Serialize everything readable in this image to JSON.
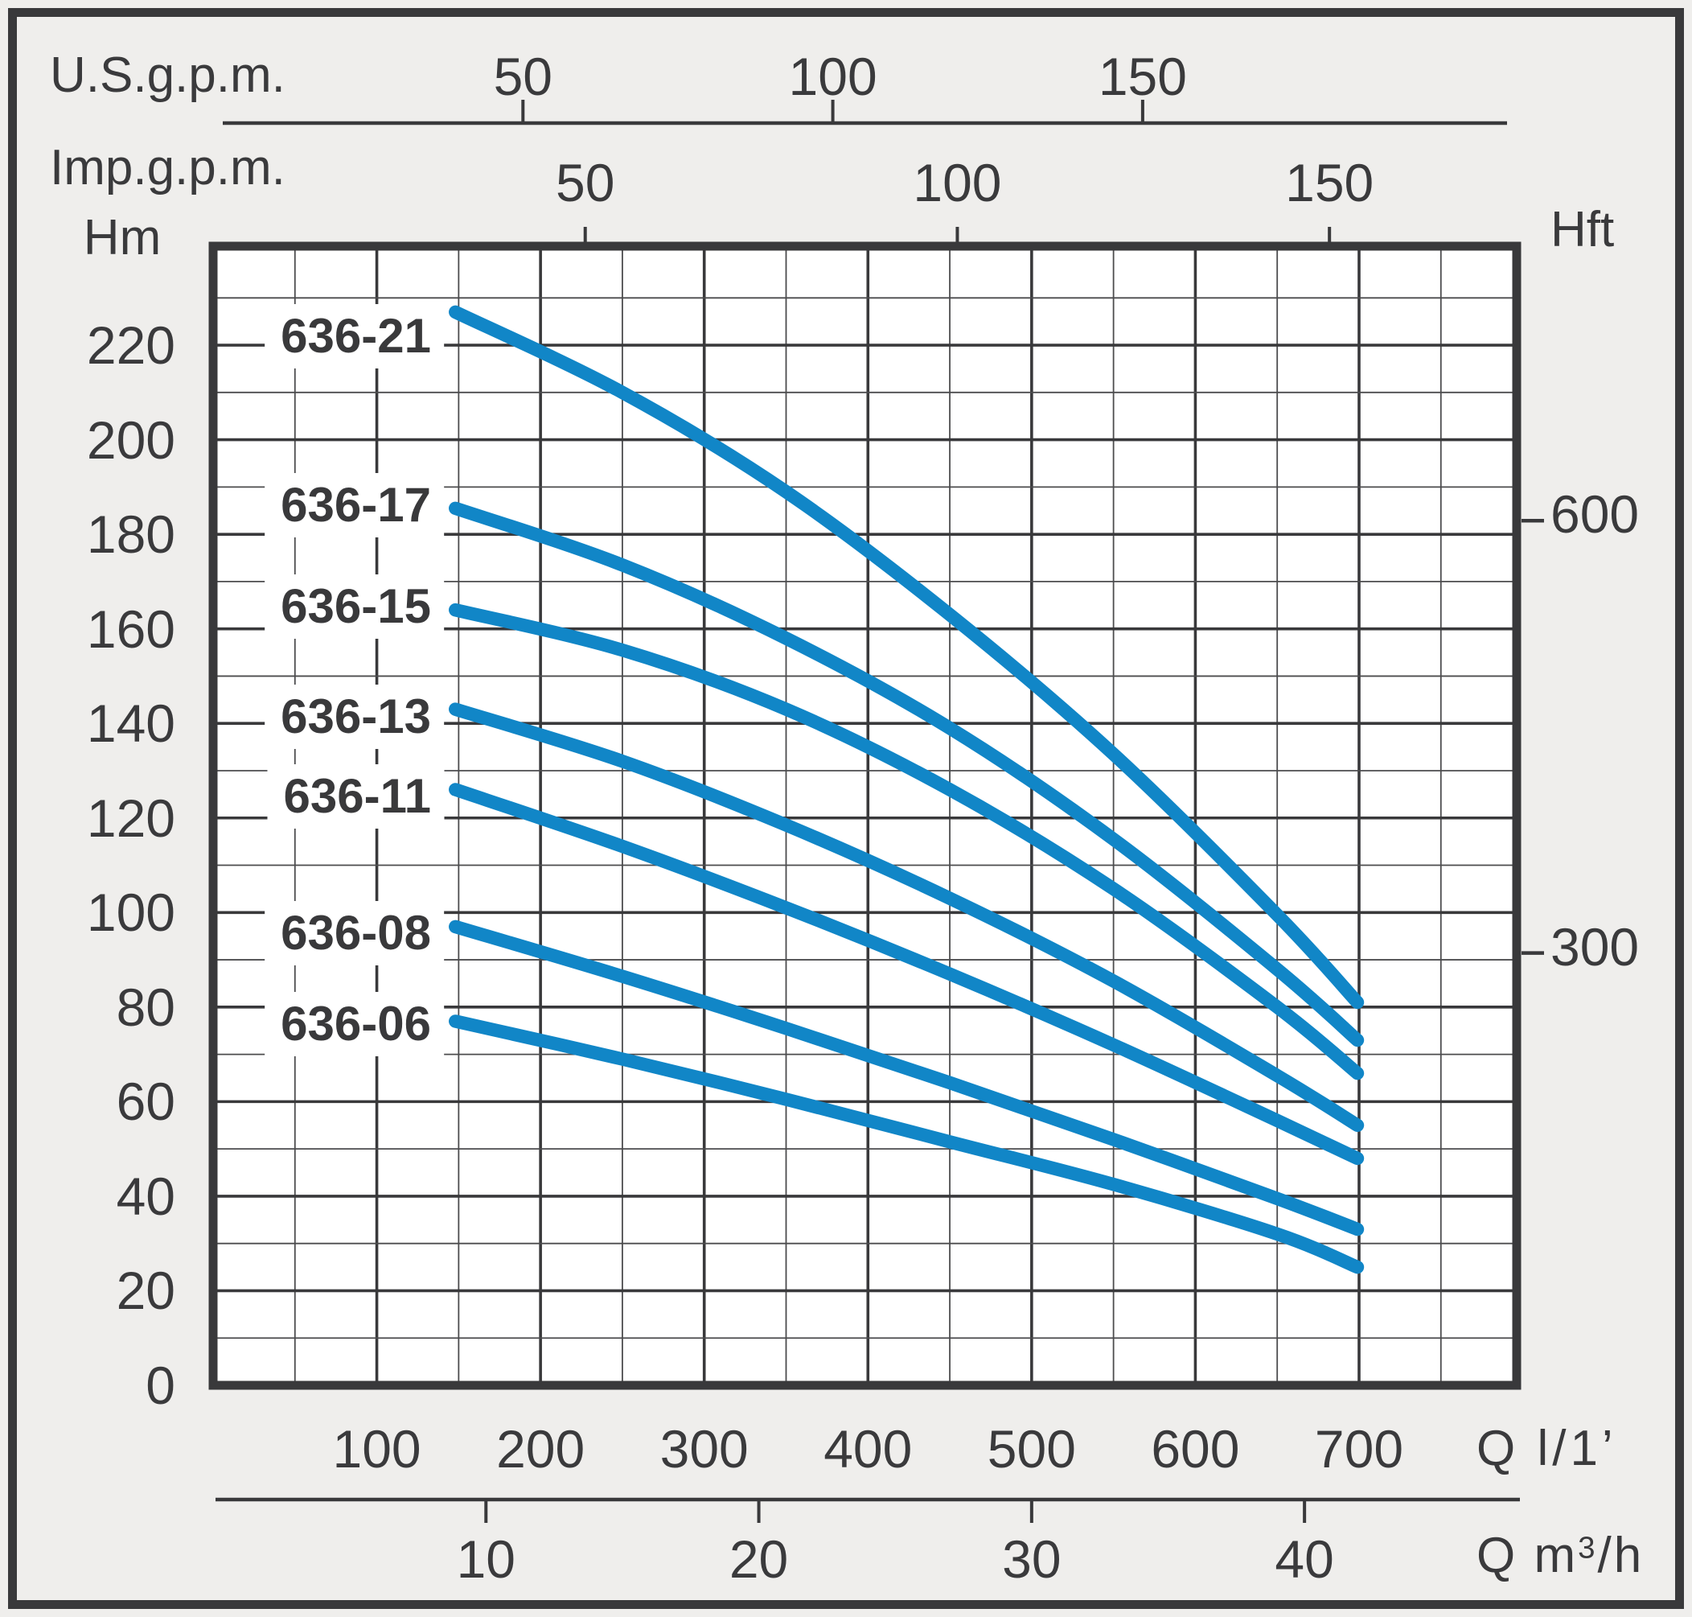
{
  "page": {
    "background": "#efeeec",
    "border_color": "#39393b"
  },
  "chart_data": {
    "type": "line",
    "title": "",
    "legend_position": "inline-left-of-curves",
    "grid": {
      "on": true,
      "x_step_lmin": 50,
      "x_major_every_lmin": 100,
      "y_step_m": 10,
      "y_major_every_m": 20
    },
    "x_range_lmin": [
      0,
      796
    ],
    "y_range_m": [
      0,
      241
    ],
    "axes": {
      "x_top_us": {
        "title": "U.S.g.p.m.",
        "ticks": [
          50,
          100,
          150
        ],
        "lmin_per_unit": 3.7854
      },
      "x_top_imp": {
        "title": "Imp.g.p.m.",
        "ticks": [
          50,
          100,
          150
        ],
        "lmin_per_unit": 4.5461
      },
      "y_left": {
        "title": "Hm",
        "ticks": [
          0,
          20,
          40,
          60,
          80,
          100,
          120,
          140,
          160,
          180,
          200,
          220
        ]
      },
      "y_right": {
        "title": "Hft",
        "ticks": [
          600,
          300
        ],
        "m_per_unit": 0.3048
      },
      "x_bottom": {
        "title": "Q l/1’",
        "ticks": [
          100,
          200,
          300,
          400,
          500,
          600,
          700
        ]
      },
      "x_bottom_m3h": {
        "title_prefix": "Q m",
        "title_sup": "3",
        "title_suffix": "/h",
        "ticks": [
          10,
          20,
          30,
          40
        ],
        "lmin_per_unit": 16.6667
      }
    },
    "series": [
      {
        "name": "636-21",
        "label_dy": 30,
        "points": [
          [
            148,
            227
          ],
          [
            250,
            210
          ],
          [
            350,
            189
          ],
          [
            450,
            163
          ],
          [
            550,
            133.5
          ],
          [
            650,
            99.5
          ],
          [
            699,
            81
          ]
        ]
      },
      {
        "name": "636-17",
        "label_dy": -4,
        "points": [
          [
            148,
            185.5
          ],
          [
            250,
            173.5
          ],
          [
            350,
            158
          ],
          [
            450,
            139
          ],
          [
            550,
            115.5
          ],
          [
            650,
            88
          ],
          [
            699,
            73
          ]
        ]
      },
      {
        "name": "636-15",
        "label_dy": -4,
        "points": [
          [
            148,
            164
          ],
          [
            250,
            155.5
          ],
          [
            350,
            143
          ],
          [
            450,
            126
          ],
          [
            550,
            105
          ],
          [
            650,
            80
          ],
          [
            699,
            66
          ]
        ]
      },
      {
        "name": "636-13",
        "label_dy": 9,
        "points": [
          [
            148,
            143
          ],
          [
            250,
            132
          ],
          [
            350,
            118.5
          ],
          [
            450,
            103
          ],
          [
            550,
            85.5
          ],
          [
            650,
            65.5
          ],
          [
            699,
            55
          ]
        ]
      },
      {
        "name": "636-11",
        "label_dy": 9,
        "points": [
          [
            148,
            126
          ],
          [
            250,
            114
          ],
          [
            350,
            101
          ],
          [
            450,
            87
          ],
          [
            550,
            72
          ],
          [
            650,
            56
          ],
          [
            699,
            48
          ]
        ]
      },
      {
        "name": "636-08",
        "label_dy": 8,
        "points": [
          [
            148,
            97
          ],
          [
            250,
            86.5
          ],
          [
            350,
            75.5
          ],
          [
            450,
            64
          ],
          [
            550,
            52
          ],
          [
            650,
            39.5
          ],
          [
            699,
            33
          ]
        ]
      },
      {
        "name": "636-06",
        "label_dy": 4,
        "points": [
          [
            148,
            77
          ],
          [
            250,
            69
          ],
          [
            350,
            60.5
          ],
          [
            450,
            51.5
          ],
          [
            550,
            42.5
          ],
          [
            650,
            32
          ],
          [
            699,
            25
          ]
        ]
      }
    ],
    "colors": {
      "curve": "#1186c7",
      "grid_major": "#39393b",
      "grid_minor": "#4c4c4e",
      "text": "#3a3a3c",
      "plot_bg": "#ffffff",
      "page_bg": "#efeeec"
    }
  }
}
